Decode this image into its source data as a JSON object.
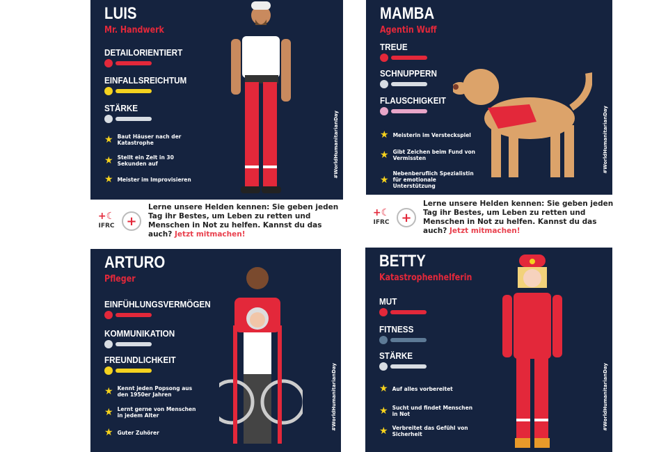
{
  "hashtag": "#WorldHumanitarianDay",
  "caption": {
    "text": "Lerne unsere Helden kennen: Sie geben jeden Tag ihr Bestes, um Leben zu retten und Menschen in Not zu helfen. Kannst du das auch?",
    "cta": "Jetzt mitmachen!",
    "logo_text": "IFRC"
  },
  "colors": {
    "navy": "#15233f",
    "red": "#e3283a",
    "yellow": "#f4d21f",
    "grey": "#d8dde3",
    "pink": "#e8a6c8",
    "steel": "#5d7a96"
  },
  "cards": [
    {
      "name": "LUIS",
      "role": "Mr. Handwerk",
      "stats": [
        {
          "label": "DETAILORIENTIERT",
          "icon": "target-icon",
          "color": "#e3283a"
        },
        {
          "label": "EINFALLSREICHTUM",
          "icon": "lightbulb-icon",
          "color": "#f4d21f"
        },
        {
          "label": "STÄRKE",
          "icon": "shield-icon",
          "color": "#d8dde3"
        }
      ],
      "traits": [
        "Baut Häuser nach der Katastrophe",
        "Stellt ein Zelt in 30 Sekunden auf",
        "Meister im Improvisieren"
      ]
    },
    {
      "name": "MAMBA",
      "role": "Agentin Wuff",
      "stats": [
        {
          "label": "TREUE",
          "icon": "heart-icon",
          "color": "#e3283a"
        },
        {
          "label": "SCHNUPPERN",
          "icon": "nose-icon",
          "color": "#d8dde3"
        },
        {
          "label": "FLAUSCHIGKEIT",
          "icon": "fluff-icon",
          "color": "#e8a6c8"
        }
      ],
      "traits": [
        "Meisterin im Versteckspiel",
        "Gibt Zeichen beim Fund von Vermissten",
        "Nebenberuflich Spezialistin für emotionale Unterstützung"
      ]
    },
    {
      "name": "ARTURO",
      "role": "Pfleger",
      "stats": [
        {
          "label": "EINFÜHLUNGSVERMÖGEN",
          "icon": "heart-icon",
          "color": "#e3283a"
        },
        {
          "label": "KOMMUNIKATION",
          "icon": "speech-bubble-icon",
          "color": "#d8dde3"
        },
        {
          "label": "FREUNDLICHKEIT",
          "icon": "banana-icon",
          "color": "#f4d21f"
        }
      ],
      "traits": [
        "Kennt jeden Popsong aus den 1950er Jahren",
        "Lernt gerne von Menschen in jedem Alter",
        "Guter Zuhörer"
      ]
    },
    {
      "name": "BETTY",
      "role": "Katastrophenhelferin",
      "stats": [
        {
          "label": "MUT",
          "icon": "gem-icon",
          "color": "#e3283a"
        },
        {
          "label": "FITNESS",
          "icon": "dumbbell-icon",
          "color": "#5d7a96"
        },
        {
          "label": "STÄRKE",
          "icon": "shield-icon",
          "color": "#d8dde3"
        }
      ],
      "traits": [
        "Auf alles vorbereitet",
        "Sucht und findet Menschen in Not",
        "Verbreitet das Gefühl von Sicherheit"
      ]
    }
  ]
}
